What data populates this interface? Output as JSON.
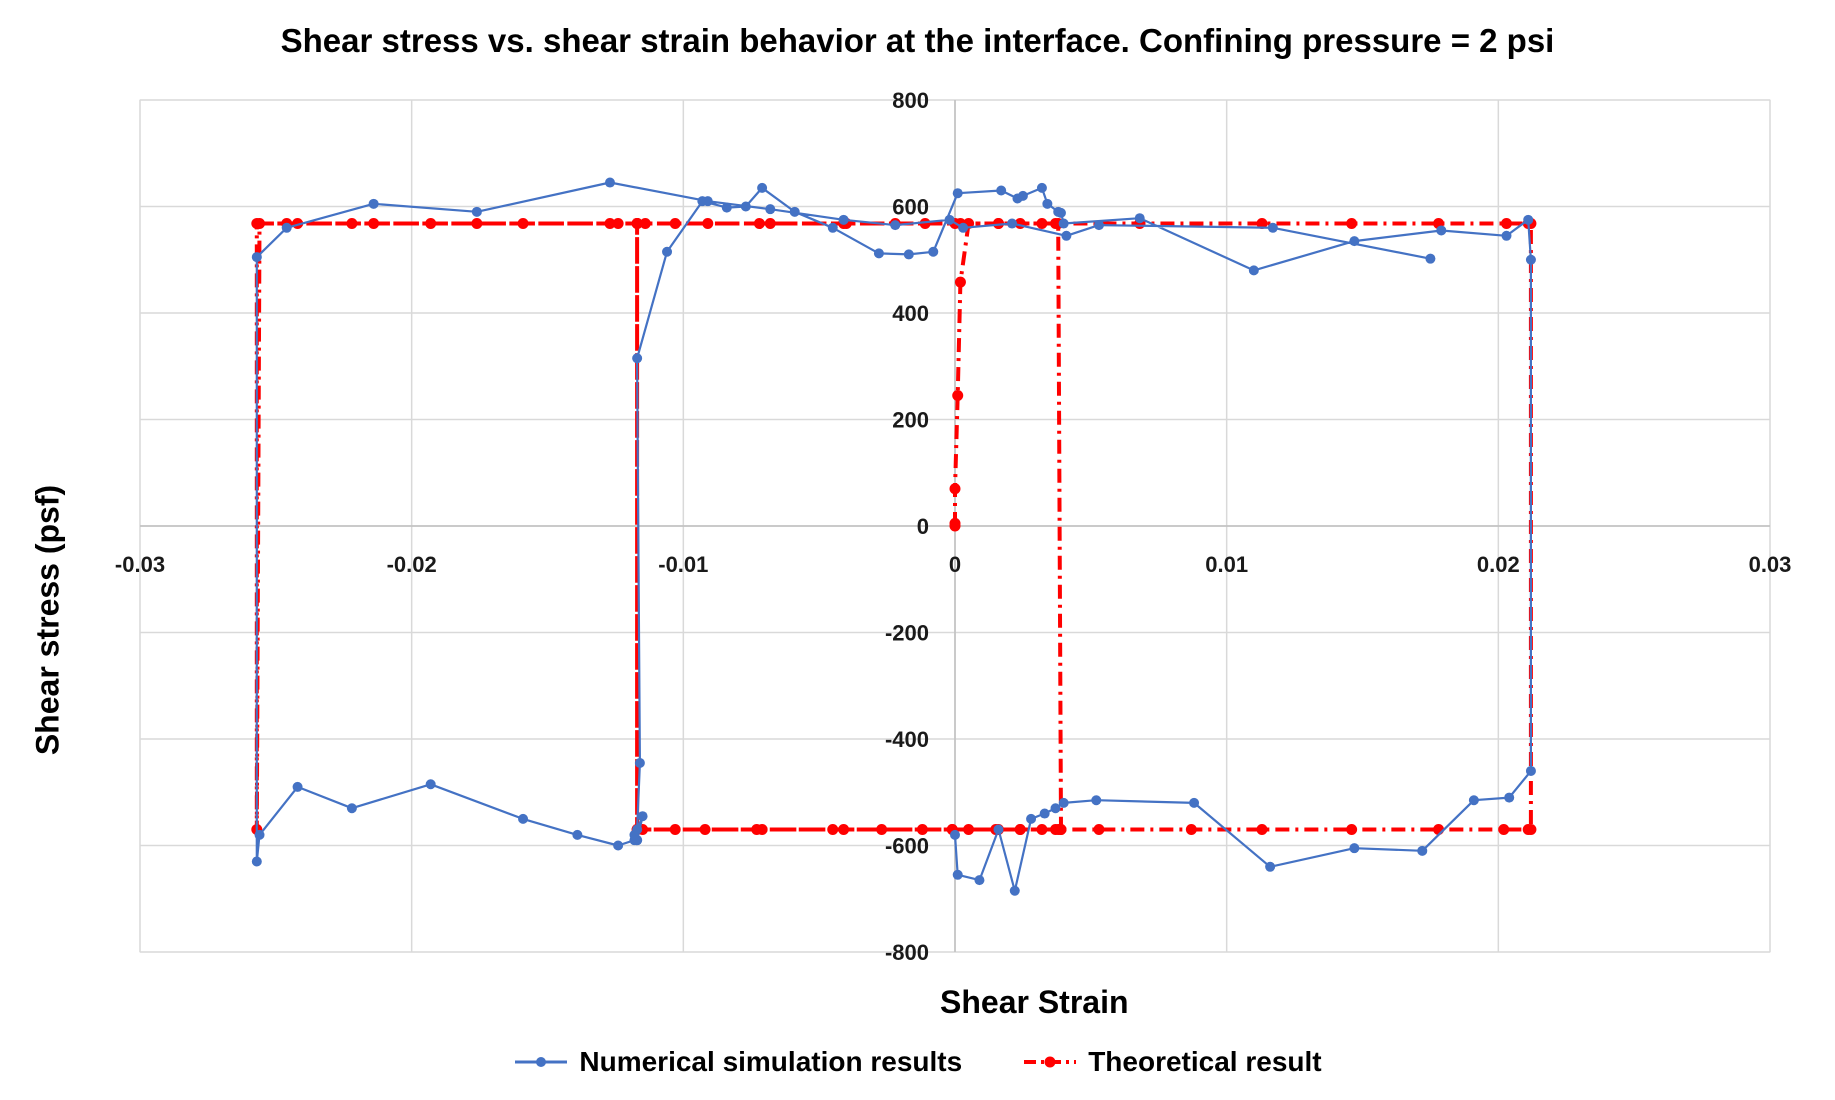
{
  "chart_data": {
    "type": "scatter",
    "title": "Shear stress vs. shear strain behavior at the interface. Confining pressure = 2 psi",
    "xlabel": "Shear Strain",
    "ylabel": "Shear stress (psf)",
    "xlim": [
      -0.03,
      0.03
    ],
    "ylim": [
      -800,
      800
    ],
    "x_ticks": [
      -0.03,
      -0.02,
      -0.01,
      0,
      0.01,
      0.02,
      0.03
    ],
    "x_tick_labels": [
      "-0.03",
      "-0.02",
      "-0.01",
      "0",
      "0.01",
      "0.02",
      "0.03"
    ],
    "y_ticks": [
      -800,
      -600,
      -400,
      -200,
      0,
      200,
      400,
      600,
      800
    ],
    "y_tick_labels": [
      "-800",
      "-600",
      "-400",
      "-200",
      "0",
      "200",
      "400",
      "600",
      "800"
    ],
    "grid": true,
    "legend_position": "bottom",
    "series": [
      {
        "name": "Numerical simulation results",
        "color": "#4472C4",
        "style": "solid-markers",
        "x": [
          0,
          0.0001,
          0.0009,
          0.0016,
          0.0022,
          0.0028,
          0.0033,
          0.0037,
          0.004,
          0.0052,
          0.0088,
          0.0116,
          0.0147,
          0.0172,
          0.0191,
          0.0204,
          0.0212,
          0.0212,
          0.0211,
          0.0203,
          0.0179,
          0.0147,
          0.011,
          0.0068,
          0.004,
          0.0039,
          0.0038,
          0.0034,
          0.0032,
          0.0025,
          0.0023,
          0.0017,
          0.0001,
          -0.0008,
          -0.0017,
          -0.0028,
          -0.0045,
          -0.0059,
          -0.0071,
          -0.0077,
          -0.0084,
          -0.0093,
          -0.0106,
          -0.0117,
          -0.0116,
          -0.0117,
          -0.0115,
          -0.0117,
          -0.0118,
          -0.0117,
          -0.0118,
          -0.0124,
          -0.0139,
          -0.0159,
          -0.0193,
          -0.0222,
          -0.0242,
          -0.0256,
          -0.0257,
          -0.0257,
          -0.0246,
          -0.0214,
          -0.0176,
          -0.0127,
          -0.0091,
          -0.0068,
          -0.0041,
          -0.0022,
          -0.0002,
          0.0003,
          0.0021,
          0.0041,
          0.0053,
          0.0117,
          0.0175
        ],
        "y": [
          -580,
          -655,
          -665,
          -570,
          -685,
          -550,
          -540,
          -530,
          -520,
          -515,
          -520,
          -640,
          -605,
          -610,
          -515,
          -510,
          -460,
          500,
          575,
          545,
          555,
          535,
          480,
          578,
          568,
          588,
          590,
          605,
          635,
          620,
          615,
          630,
          625,
          515,
          510,
          512,
          560,
          590,
          635,
          600,
          598,
          610,
          515,
          315,
          -445,
          -570,
          -545,
          -590,
          -580,
          -590,
          -590,
          -600,
          -580,
          -550,
          -485,
          -530,
          -490,
          -580,
          -630,
          505,
          560,
          605,
          590,
          645,
          610,
          595,
          575,
          565,
          575,
          560,
          568,
          545,
          565,
          560,
          502
        ]
      },
      {
        "name": "Theoretical result",
        "color": "#FF0000",
        "style": "dash-dot-markers",
        "x": [
          0,
          0,
          0,
          0.0001,
          0.0002,
          0.0005,
          0.0016,
          0.0024,
          0.0032,
          0.0038,
          0.0039,
          0.0039,
          0.0038,
          0.0032,
          0.0024,
          0.0016,
          0.0005,
          -0.0001,
          -0.0012,
          -0.0027,
          -0.0045,
          -0.0073,
          -0.0103,
          -0.0115,
          -0.0117,
          -0.0117,
          -0.0117,
          -0.0114,
          -0.0103,
          -0.0072,
          -0.004,
          -0.0011,
          0.0016,
          0.0037,
          0.0068,
          0.0113,
          0.0146,
          0.0178,
          0.0203,
          0.0211,
          0.0212,
          0.0212,
          0.0211,
          0.0202,
          0.0178,
          0.0146,
          0.0113,
          0.0087,
          0.0053,
          0.0037,
          0.0024,
          0.0015,
          -0.0001,
          -0.0041,
          -0.0071,
          -0.0092,
          -0.0117,
          -0.0117,
          -0.0117,
          -0.0124,
          -0.0159,
          -0.0193,
          -0.0222,
          -0.0242,
          -0.0256,
          -0.0257,
          -0.0257,
          -0.0246,
          -0.0214,
          -0.0176,
          -0.0127,
          -0.0091,
          -0.0068,
          -0.0041,
          -0.0022,
          0,
          0.0002
        ],
        "y": [
          0,
          5,
          70,
          245,
          458,
          568,
          568,
          568,
          568,
          568,
          -570,
          -570,
          -570,
          -570,
          -570,
          -570,
          -570,
          -570,
          -570,
          -570,
          -570,
          -570,
          -570,
          -570,
          -570,
          568,
          568,
          568,
          568,
          568,
          568,
          568,
          568,
          568,
          568,
          568,
          568,
          568,
          568,
          568,
          568,
          -570,
          -570,
          -570,
          -570,
          -570,
          -570,
          -570,
          -570,
          -570,
          -570,
          -570,
          -570,
          -570,
          -570,
          -570,
          -570,
          568,
          568,
          568,
          568,
          568,
          568,
          568,
          568,
          -570,
          568,
          568,
          568,
          568,
          568,
          568,
          568,
          568,
          568,
          568,
          568
        ]
      }
    ]
  }
}
